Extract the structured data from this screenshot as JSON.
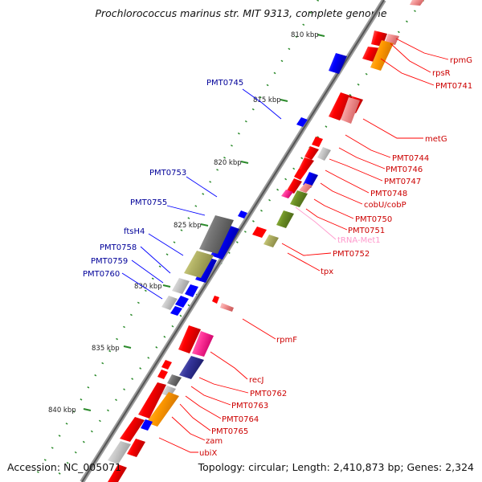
{
  "title": "Prochlorococcus marinus str. MIT 9313, complete genome",
  "footer": {
    "accession": "Accession: NC_005071",
    "topology": "Topology: circular; Length: 2,410,873 bp; Genes: 2,324"
  },
  "scale_labels": [
    "810 kbp",
    "815 kbp",
    "820 kbp",
    "825 kbp",
    "830 kbp",
    "835 kbp",
    "840 kbp"
  ],
  "colors": {
    "red": "#ff0000",
    "pink": "#ff3399",
    "blue": "#0000ff",
    "olive": "#999933",
    "gray": "#777777",
    "orange": "#ff9900",
    "navy": "#333399",
    "label_red": "#cc0000",
    "label_blue": "#000099",
    "label_pink": "#ff99cc"
  },
  "left_labels": [
    "PMT0745",
    "PMT0753",
    "PMT0755",
    "ftsH4",
    "PMT0758",
    "PMT0759",
    "PMT0760"
  ],
  "right_labels": [
    "rpmG",
    "rpsR",
    "PMT0741",
    "metG",
    "PMT0744",
    "PMT0746",
    "PMT0747",
    "PMT0748",
    "cobU/cobP",
    "PMT0750",
    "PMT0751",
    "tRNA-Met1",
    "PMT0752",
    "tpx",
    "rpmF",
    "recJ",
    "PMT0762",
    "PMT0763",
    "PMT0764",
    "PMT0765",
    "zam",
    "ubiX"
  ]
}
